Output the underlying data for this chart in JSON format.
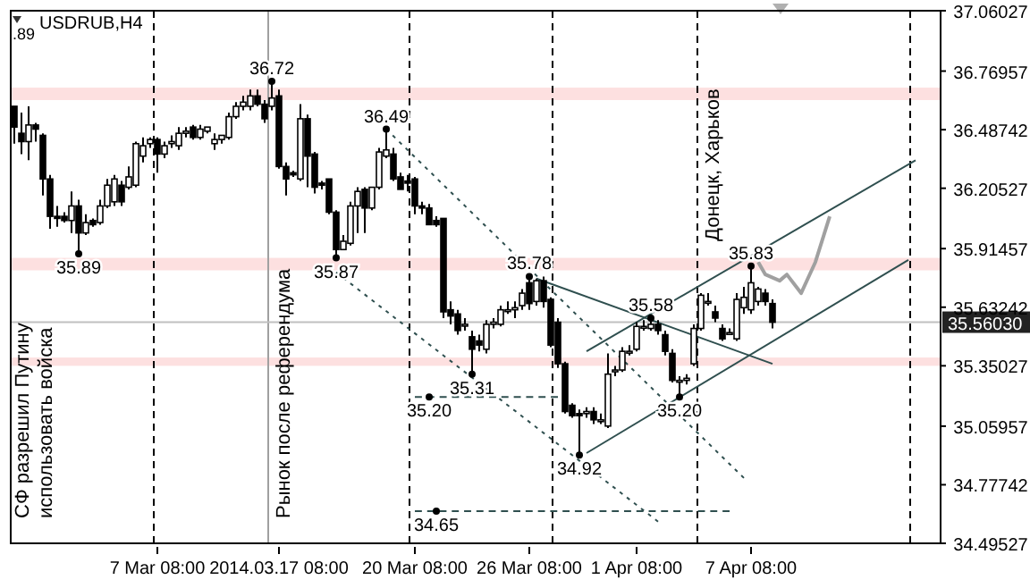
{
  "chart_data": {
    "type": "candlestick",
    "title": "USDRUB,H4",
    "categories": [
      null,
      null,
      null,
      null,
      null,
      null,
      null,
      null,
      null,
      null,
      null,
      null,
      null,
      null,
      null,
      null,
      null,
      null,
      null,
      null,
      "7 Mar 08:00",
      null,
      null,
      null,
      null,
      null,
      null,
      null,
      null,
      null,
      null,
      null,
      null,
      null,
      null,
      null,
      null,
      "2014.03.17 08:00",
      null,
      null,
      null,
      null,
      null,
      null,
      null,
      null,
      null,
      null,
      null,
      null,
      null,
      null,
      null,
      null,
      null,
      null,
      "20 Mar 08:00",
      null,
      null,
      null,
      null,
      null,
      null,
      null,
      null,
      null,
      null,
      null,
      null,
      null,
      null,
      null,
      "26 Mar 08:00",
      null,
      null,
      null,
      null,
      null,
      null,
      null,
      null,
      null,
      null,
      null,
      null,
      null,
      null,
      "1 Apr 08:00",
      null,
      null,
      null,
      null,
      null,
      null,
      null,
      null,
      null,
      null,
      null,
      null,
      null,
      null,
      null,
      "7 Apr 08:00",
      null,
      null,
      null,
      null,
      null,
      null,
      null,
      null,
      null,
      null,
      null,
      null,
      null,
      null,
      null,
      null,
      null,
      null,
      null,
      null,
      null,
      null,
      null,
      null,
      null,
      null
    ],
    "ohlc": [
      [
        36.6,
        36.6,
        36.42,
        36.5
      ],
      [
        36.47,
        36.57,
        36.37,
        36.43
      ],
      [
        36.43,
        36.6,
        36.34,
        36.51
      ],
      [
        36.51,
        36.52,
        36.43,
        36.49
      ],
      [
        36.46,
        36.47,
        36.17,
        36.25
      ],
      [
        36.25,
        36.27,
        36.01,
        36.07
      ],
      [
        36.07,
        36.12,
        36.02,
        36.06
      ],
      [
        36.07,
        36.09,
        36.04,
        36.05
      ],
      [
        36.05,
        36.19,
        35.99,
        36.12
      ],
      [
        36.12,
        36.15,
        35.89,
        35.99
      ],
      [
        35.99,
        36.08,
        35.98,
        36.04
      ],
      [
        36.05,
        36.06,
        36.02,
        36.03
      ],
      [
        36.04,
        36.15,
        36.03,
        36.12
      ],
      [
        36.12,
        36.25,
        36.11,
        36.22
      ],
      [
        36.14,
        36.27,
        36.12,
        36.25
      ],
      [
        36.22,
        36.24,
        36.12,
        36.14
      ],
      [
        36.21,
        36.31,
        36.2,
        36.26
      ],
      [
        36.22,
        36.43,
        36.21,
        36.42
      ],
      [
        36.36,
        36.45,
        36.33,
        36.41
      ],
      [
        36.42,
        36.45,
        36.4,
        36.44
      ],
      [
        36.44,
        36.45,
        36.28,
        36.37
      ],
      [
        36.37,
        36.43,
        36.35,
        36.41
      ],
      [
        36.42,
        36.46,
        36.4,
        36.43
      ],
      [
        36.41,
        36.5,
        36.39,
        36.47
      ],
      [
        36.47,
        36.5,
        36.45,
        36.48
      ],
      [
        36.5,
        36.51,
        36.44,
        36.45
      ],
      [
        36.45,
        36.51,
        36.44,
        36.49
      ],
      [
        36.48,
        36.5,
        36.47,
        36.5
      ],
      [
        36.42,
        36.47,
        36.39,
        36.44
      ],
      [
        36.44,
        36.46,
        36.42,
        36.46
      ],
      [
        36.45,
        36.57,
        36.44,
        36.55
      ],
      [
        36.55,
        36.62,
        36.54,
        36.6
      ],
      [
        36.6,
        36.65,
        36.58,
        36.62
      ],
      [
        36.6,
        36.68,
        36.58,
        36.65
      ],
      [
        36.65,
        36.68,
        36.6,
        36.61
      ],
      [
        36.61,
        36.63,
        36.52,
        36.54
      ],
      [
        36.6,
        36.72,
        36.58,
        36.64
      ],
      [
        36.65,
        36.68,
        36.3,
        36.31
      ],
      [
        36.31,
        36.33,
        36.17,
        36.25
      ],
      [
        36.28,
        36.29,
        36.26,
        36.27
      ],
      [
        36.25,
        36.61,
        36.24,
        36.54
      ],
      [
        36.54,
        36.56,
        36.21,
        36.36
      ],
      [
        36.37,
        36.38,
        36.18,
        36.21
      ],
      [
        36.23,
        36.24,
        36.2,
        36.22
      ],
      [
        36.25,
        36.25,
        36.08,
        36.09
      ],
      [
        36.09,
        36.1,
        35.87,
        35.91
      ],
      [
        35.91,
        35.98,
        35.91,
        35.95
      ],
      [
        35.94,
        36.14,
        35.93,
        36.12
      ],
      [
        36.12,
        36.21,
        35.99,
        36.19
      ],
      [
        36.2,
        36.21,
        35.99,
        36.11
      ],
      [
        36.11,
        36.21,
        36.1,
        36.21
      ],
      [
        36.21,
        36.4,
        36.2,
        36.38
      ],
      [
        36.36,
        36.49,
        36.35,
        36.39
      ],
      [
        36.37,
        36.4,
        36.24,
        36.25
      ],
      [
        36.26,
        36.28,
        36.2,
        36.2
      ],
      [
        36.24,
        36.27,
        36.19,
        36.23
      ],
      [
        36.25,
        36.26,
        36.08,
        36.12
      ],
      [
        36.12,
        36.14,
        36.08,
        36.11
      ],
      [
        36.11,
        36.13,
        36.03,
        36.03
      ],
      [
        36.05,
        36.07,
        36.02,
        36.03
      ],
      [
        36.06,
        36.06,
        35.58,
        35.61
      ],
      [
        35.62,
        35.66,
        35.55,
        35.59
      ],
      [
        35.6,
        35.62,
        35.5,
        35.52
      ],
      [
        35.55,
        35.58,
        35.52,
        35.55
      ],
      [
        35.49,
        35.52,
        35.31,
        35.43
      ],
      [
        35.47,
        35.5,
        35.42,
        35.45
      ],
      [
        35.43,
        35.57,
        35.41,
        35.55
      ],
      [
        35.55,
        35.58,
        35.53,
        35.56
      ],
      [
        35.55,
        35.64,
        35.54,
        35.62
      ],
      [
        35.62,
        35.66,
        35.6,
        35.62
      ],
      [
        35.62,
        35.66,
        35.58,
        35.63
      ],
      [
        35.64,
        35.72,
        35.62,
        35.7
      ],
      [
        35.75,
        35.78,
        35.62,
        35.65
      ],
      [
        35.66,
        35.77,
        35.64,
        35.76
      ],
      [
        35.76,
        35.78,
        35.63,
        35.66
      ],
      [
        35.67,
        35.68,
        35.44,
        35.45
      ],
      [
        35.56,
        35.58,
        35.34,
        35.36
      ],
      [
        35.36,
        35.37,
        35.12,
        35.13
      ],
      [
        35.16,
        35.17,
        35.1,
        35.11
      ],
      [
        35.12,
        35.14,
        34.92,
        35.11
      ],
      [
        35.12,
        35.15,
        35.1,
        35.13
      ],
      [
        35.13,
        35.15,
        35.07,
        35.09
      ],
      [
        35.09,
        35.12,
        35.07,
        35.09
      ],
      [
        35.06,
        35.41,
        35.05,
        35.31
      ],
      [
        35.33,
        35.35,
        35.3,
        35.33
      ],
      [
        35.33,
        35.44,
        35.32,
        35.42
      ],
      [
        35.42,
        35.45,
        35.4,
        35.42
      ],
      [
        35.43,
        35.56,
        35.42,
        35.54
      ],
      [
        35.54,
        35.57,
        35.52,
        35.54
      ],
      [
        35.53,
        35.58,
        35.52,
        35.55
      ],
      [
        35.55,
        35.57,
        35.5,
        35.52
      ],
      [
        35.5,
        35.52,
        35.4,
        35.42
      ],
      [
        35.41,
        35.43,
        35.27,
        35.28
      ],
      [
        35.28,
        35.3,
        35.2,
        35.28
      ],
      [
        35.28,
        35.31,
        35.26,
        35.29
      ],
      [
        35.36,
        35.55,
        35.35,
        35.53
      ],
      [
        35.53,
        35.7,
        35.52,
        35.69
      ],
      [
        35.66,
        35.7,
        35.64,
        35.66
      ],
      [
        35.61,
        35.64,
        35.56,
        35.58
      ],
      [
        35.53,
        35.55,
        35.47,
        35.48
      ],
      [
        35.51,
        35.53,
        35.5,
        35.51
      ],
      [
        35.48,
        35.7,
        35.47,
        35.67
      ],
      [
        35.63,
        35.73,
        35.6,
        35.68
      ],
      [
        35.62,
        35.83,
        35.6,
        35.75
      ],
      [
        35.66,
        35.73,
        35.64,
        35.72
      ],
      [
        35.7,
        35.72,
        35.64,
        35.66
      ],
      [
        35.65,
        35.67,
        35.53,
        35.56
      ],
      null,
      null,
      null,
      null,
      null,
      null,
      null,
      null,
      null,
      null,
      null,
      null,
      null,
      null,
      null,
      null,
      null,
      null,
      null,
      null,
      null,
      null,
      null
    ],
    "color": "#000000",
    "series": [
      {
        "type": "line",
        "color": "#2f4f4f",
        "line_style": "solid",
        "values": [
          null,
          null,
          null,
          null,
          null,
          null,
          null,
          null,
          null,
          null,
          null,
          null,
          null,
          null,
          null,
          null,
          null,
          null,
          null,
          null,
          null,
          null,
          null,
          null,
          null,
          null,
          null,
          null,
          null,
          null,
          null,
          null,
          null,
          null,
          null,
          null,
          null,
          null,
          null,
          null,
          null,
          null,
          null,
          null,
          null,
          null,
          null,
          null,
          null,
          null,
          null,
          null,
          null,
          null,
          null,
          null,
          null,
          null,
          null,
          null,
          null,
          null,
          null,
          null,
          null,
          null,
          null,
          null,
          null,
          null,
          null,
          null,
          null,
          null,
          null,
          null,
          null,
          null,
          null,
          null,
          35.42,
          null,
          null,
          null,
          null,
          null,
          null,
          null,
          null,
          null,
          null,
          null,
          null,
          null,
          null,
          null,
          null,
          null,
          null,
          null,
          null,
          null,
          null,
          null,
          null,
          null,
          null,
          null,
          null,
          null,
          null,
          null,
          null,
          null,
          null,
          null,
          null,
          null,
          null,
          null,
          null,
          null,
          null,
          null,
          null,
          null,
          36.34,
          null,
          null,
          null
        ]
      },
      {
        "type": "line",
        "color": "#2f4f4f",
        "line_style": "solid",
        "values": [
          null,
          null,
          null,
          null,
          null,
          null,
          null,
          null,
          null,
          null,
          null,
          null,
          null,
          null,
          null,
          null,
          null,
          null,
          null,
          null,
          null,
          null,
          null,
          null,
          null,
          null,
          null,
          null,
          null,
          null,
          null,
          null,
          null,
          null,
          null,
          null,
          null,
          null,
          null,
          null,
          null,
          null,
          null,
          null,
          null,
          null,
          null,
          null,
          null,
          null,
          null,
          null,
          null,
          null,
          null,
          null,
          null,
          null,
          null,
          null,
          null,
          null,
          null,
          null,
          null,
          null,
          null,
          null,
          null,
          null,
          null,
          null,
          null,
          null,
          null,
          null,
          null,
          null,
          null,
          null,
          34.93,
          null,
          null,
          null,
          null,
          null,
          null,
          null,
          null,
          null,
          null,
          null,
          null,
          null,
          null,
          null,
          null,
          null,
          null,
          null,
          null,
          null,
          null,
          null,
          null,
          null,
          null,
          null,
          null,
          null,
          null,
          null,
          null,
          null,
          null,
          null,
          null,
          null,
          null,
          null,
          null,
          null,
          null,
          null,
          null,
          35.86,
          null,
          null,
          null,
          null
        ]
      },
      {
        "type": "line",
        "color": "#2f4f4f",
        "line_style": "solid",
        "values": [
          null,
          null,
          null,
          null,
          null,
          null,
          null,
          null,
          null,
          null,
          null,
          null,
          null,
          null,
          null,
          null,
          null,
          null,
          null,
          null,
          null,
          null,
          null,
          null,
          null,
          null,
          null,
          null,
          null,
          null,
          null,
          null,
          null,
          null,
          null,
          null,
          null,
          null,
          null,
          null,
          null,
          null,
          null,
          null,
          null,
          null,
          null,
          null,
          null,
          null,
          null,
          null,
          null,
          null,
          null,
          null,
          null,
          null,
          null,
          null,
          null,
          null,
          null,
          null,
          null,
          null,
          null,
          null,
          null,
          null,
          null,
          null,
          null,
          35.77,
          null,
          null,
          null,
          null,
          null,
          null,
          null,
          null,
          null,
          null,
          null,
          null,
          null,
          null,
          null,
          null,
          null,
          null,
          null,
          null,
          null,
          null,
          null,
          null,
          null,
          null,
          null,
          null,
          null,
          null,
          null,
          null,
          35.36,
          null,
          null,
          null,
          null,
          null,
          null,
          null,
          null,
          null,
          null,
          null,
          null,
          null,
          null,
          null,
          null,
          null,
          null,
          null,
          null,
          null,
          null,
          null
        ]
      },
      {
        "type": "line",
        "color": "#2f4f4f",
        "line_style": "dotted",
        "values": [
          null,
          null,
          null,
          null,
          null,
          null,
          null,
          null,
          null,
          null,
          null,
          null,
          null,
          null,
          null,
          null,
          null,
          null,
          null,
          null,
          null,
          null,
          null,
          null,
          null,
          null,
          null,
          null,
          null,
          null,
          null,
          null,
          null,
          null,
          null,
          null,
          null,
          null,
          null,
          null,
          null,
          null,
          null,
          null,
          null,
          null,
          null,
          null,
          null,
          null,
          null,
          null,
          36.49,
          null,
          null,
          null,
          null,
          null,
          null,
          null,
          null,
          null,
          null,
          null,
          null,
          null,
          null,
          null,
          null,
          null,
          null,
          null,
          null,
          null,
          null,
          null,
          null,
          null,
          null,
          null,
          null,
          null,
          null,
          null,
          null,
          null,
          null,
          null,
          null,
          null,
          null,
          null,
          null,
          null,
          null,
          null,
          null,
          null,
          null,
          null,
          null,
          null,
          34.81,
          null,
          null,
          null,
          null,
          null,
          null,
          null,
          null,
          null,
          null,
          null,
          null,
          null,
          null,
          null,
          null,
          null,
          null,
          null,
          null,
          null,
          null,
          null,
          null,
          null,
          null,
          null
        ]
      },
      {
        "type": "line",
        "color": "#2f4f4f",
        "line_style": "dotted",
        "values": [
          null,
          null,
          null,
          null,
          null,
          null,
          null,
          null,
          null,
          null,
          null,
          null,
          null,
          null,
          null,
          null,
          null,
          null,
          null,
          null,
          null,
          null,
          null,
          null,
          null,
          null,
          null,
          null,
          null,
          null,
          null,
          null,
          null,
          null,
          null,
          null,
          null,
          null,
          null,
          null,
          null,
          null,
          null,
          null,
          null,
          35.8,
          null,
          null,
          null,
          null,
          null,
          null,
          null,
          null,
          null,
          null,
          null,
          null,
          null,
          null,
          null,
          null,
          null,
          null,
          null,
          null,
          null,
          null,
          null,
          null,
          null,
          null,
          null,
          null,
          null,
          null,
          null,
          null,
          null,
          null,
          null,
          null,
          null,
          null,
          null,
          null,
          null,
          null,
          null,
          null,
          34.6,
          null,
          null,
          null,
          null,
          null,
          null,
          null,
          null,
          null,
          null,
          null,
          null,
          null,
          null,
          null,
          null,
          null,
          null,
          null,
          null,
          null,
          null,
          null,
          null,
          null,
          null,
          null,
          null,
          null,
          null,
          null,
          null,
          null,
          null,
          null,
          null,
          null,
          null,
          null
        ]
      },
      {
        "type": "line",
        "color": "#2f4f4f",
        "line_style": "dashed",
        "values": [
          null,
          null,
          null,
          null,
          null,
          null,
          null,
          null,
          null,
          null,
          null,
          null,
          null,
          null,
          null,
          null,
          null,
          null,
          null,
          null,
          null,
          null,
          null,
          null,
          null,
          null,
          null,
          null,
          null,
          null,
          null,
          null,
          null,
          null,
          null,
          null,
          null,
          null,
          null,
          null,
          null,
          null,
          null,
          null,
          null,
          null,
          null,
          null,
          null,
          null,
          null,
          null,
          null,
          null,
          null,
          null,
          35.2,
          null,
          null,
          null,
          null,
          null,
          null,
          null,
          null,
          null,
          null,
          null,
          null,
          null,
          null,
          null,
          null,
          null,
          null,
          null,
          35.2,
          null,
          null,
          null,
          null,
          null,
          null,
          null,
          null,
          null,
          null,
          null,
          null,
          null,
          null,
          null,
          null,
          null,
          null,
          null,
          null,
          null,
          null,
          null,
          null,
          null,
          null,
          null,
          null,
          null,
          null,
          null,
          null,
          null,
          null,
          null,
          null,
          null,
          null,
          null,
          null,
          null,
          null,
          null,
          null,
          null,
          null,
          null,
          null,
          null,
          null,
          null,
          null,
          null
        ]
      },
      {
        "type": "line",
        "color": "#2f4f4f",
        "line_style": "dashed",
        "values": [
          null,
          null,
          null,
          null,
          null,
          null,
          null,
          null,
          null,
          null,
          null,
          null,
          null,
          null,
          null,
          null,
          null,
          null,
          null,
          null,
          null,
          null,
          null,
          null,
          null,
          null,
          null,
          null,
          null,
          null,
          null,
          null,
          null,
          null,
          null,
          null,
          null,
          null,
          null,
          null,
          null,
          null,
          null,
          null,
          null,
          null,
          null,
          null,
          null,
          null,
          null,
          null,
          null,
          null,
          null,
          null,
          34.65,
          null,
          null,
          null,
          null,
          null,
          null,
          null,
          null,
          null,
          null,
          null,
          null,
          null,
          null,
          null,
          null,
          null,
          null,
          null,
          null,
          null,
          null,
          null,
          null,
          null,
          null,
          null,
          null,
          null,
          null,
          null,
          null,
          null,
          null,
          null,
          null,
          null,
          null,
          null,
          null,
          null,
          null,
          null,
          34.65,
          null,
          null,
          null,
          null,
          null,
          null,
          null,
          null,
          null,
          null,
          null,
          null,
          null,
          null,
          null,
          null,
          null,
          null,
          null,
          null,
          null,
          null,
          null,
          null,
          null,
          null,
          null,
          null,
          null
        ]
      },
      {
        "type": "line",
        "color": "#a0a0a0",
        "line_style": "solid",
        "values": [
          null,
          null,
          null,
          null,
          null,
          null,
          null,
          null,
          null,
          null,
          null,
          null,
          null,
          null,
          null,
          null,
          null,
          null,
          null,
          null,
          null,
          null,
          null,
          null,
          null,
          null,
          null,
          null,
          null,
          null,
          null,
          null,
          null,
          null,
          null,
          null,
          null,
          null,
          null,
          null,
          null,
          null,
          null,
          null,
          null,
          null,
          null,
          null,
          null,
          null,
          null,
          null,
          null,
          null,
          null,
          null,
          null,
          null,
          null,
          null,
          null,
          null,
          null,
          null,
          null,
          null,
          null,
          null,
          null,
          null,
          null,
          null,
          null,
          null,
          null,
          null,
          null,
          null,
          null,
          null,
          null,
          null,
          null,
          null,
          null,
          null,
          null,
          null,
          null,
          null,
          null,
          null,
          null,
          null,
          null,
          null,
          null,
          null,
          null,
          null,
          null,
          null,
          null,
          null,
          35.85,
          35.79,
          null,
          35.76,
          35.79,
          null,
          35.7,
          null,
          35.85,
          null,
          36.07,
          null,
          null,
          null,
          null,
          null,
          null,
          null,
          null,
          null,
          null,
          null,
          null,
          null,
          null,
          null
        ]
      },
      {
        "type": "scatter",
        "marker": "circle",
        "color": "#000000",
        "values": [
          null,
          null,
          null,
          null,
          null,
          null,
          null,
          null,
          null,
          35.89,
          null,
          null,
          null,
          null,
          null,
          null,
          null,
          null,
          null,
          null,
          null,
          null,
          null,
          null,
          null,
          null,
          null,
          null,
          null,
          null,
          null,
          null,
          null,
          null,
          null,
          null,
          36.72,
          null,
          null,
          null,
          null,
          null,
          null,
          null,
          null,
          35.87,
          null,
          null,
          null,
          null,
          null,
          null,
          36.49,
          null,
          null,
          null,
          null,
          null,
          35.2,
          34.65,
          null,
          null,
          null,
          null,
          35.31,
          null,
          null,
          null,
          null,
          null,
          null,
          null,
          35.78,
          null,
          null,
          null,
          null,
          null,
          null,
          34.92,
          null,
          null,
          null,
          null,
          null,
          null,
          null,
          null,
          null,
          35.58,
          null,
          null,
          null,
          35.2,
          null,
          null,
          null,
          null,
          null,
          null,
          null,
          null,
          null,
          35.83,
          null,
          null,
          null,
          null,
          null,
          null,
          null,
          null,
          null,
          null,
          null,
          null,
          null,
          null,
          null,
          null,
          null,
          null,
          null,
          null,
          null,
          null,
          null,
          null,
          null,
          null
        ],
        "value_labels": [
          null,
          null,
          null,
          null,
          null,
          null,
          null,
          null,
          null,
          "35.89",
          null,
          null,
          null,
          null,
          null,
          null,
          null,
          null,
          null,
          null,
          null,
          null,
          null,
          null,
          null,
          null,
          null,
          null,
          null,
          null,
          null,
          null,
          null,
          null,
          null,
          null,
          "36.72",
          null,
          null,
          null,
          null,
          null,
          null,
          null,
          null,
          "35.87",
          null,
          null,
          null,
          null,
          null,
          null,
          "36.49",
          null,
          null,
          null,
          null,
          null,
          "35.20",
          "34.65",
          null,
          null,
          null,
          null,
          "35.31",
          null,
          null,
          null,
          null,
          null,
          null,
          null,
          "35.78",
          null,
          null,
          null,
          null,
          null,
          null,
          "34.92",
          null,
          null,
          null,
          null,
          null,
          null,
          null,
          null,
          null,
          "35.58",
          null,
          null,
          null,
          "35.20",
          null,
          null,
          null,
          null,
          null,
          null,
          null,
          null,
          null,
          "35.83",
          null,
          null,
          null,
          null,
          null,
          null,
          null,
          null,
          null,
          null,
          null,
          null,
          null,
          null,
          null,
          null,
          null,
          null,
          null,
          null,
          null,
          null,
          null,
          null,
          null,
          null
        ]
      }
    ],
    "ylim": [
      34.49527,
      37.06027
    ],
    "yticks": [
      34.49527,
      34.77742,
      35.05957,
      35.35027,
      35.63242,
      35.91457,
      36.20527,
      36.48742,
      36.76957,
      37.06027
    ],
    "grid": false,
    "bands": [
      {
        "axis": "y",
        "from": 36.63,
        "to": 36.69,
        "color": "#fde0e0"
      },
      {
        "axis": "y",
        "from": 35.81,
        "to": 35.87,
        "color": "#fde0e0"
      },
      {
        "axis": "y",
        "from": 35.35,
        "to": 35.39,
        "color": "#fde0e0"
      }
    ],
    "ref_lines": [
      {
        "axis": "y",
        "value": 35.5603,
        "label": "35.56030",
        "color": "#c0c0c0",
        "line_style": "solid"
      }
    ],
    "annotations": [
      ".89",
      "СФ разрешил Путину\nиспользовать войска",
      "Рынок после референдума",
      "Донецк, Харьков"
    ]
  }
}
